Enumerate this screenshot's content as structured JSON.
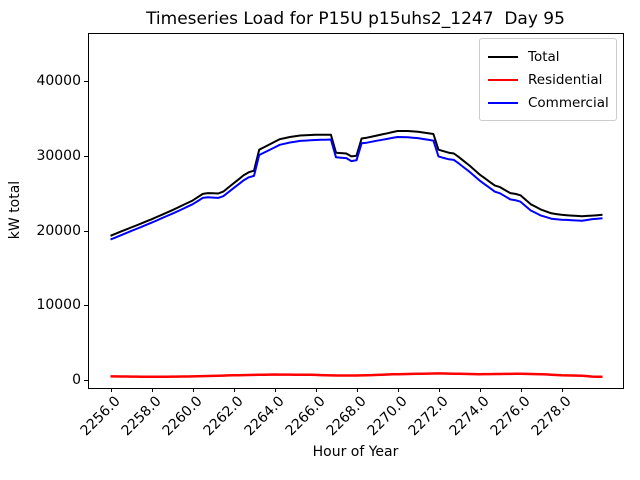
{
  "figure": {
    "title": "Timeseries Load for P15U p15uhs2_1247  Day 95"
  },
  "chart_data": {
    "type": "line",
    "title": "Timeseries Load for P15U p15uhs2_1247  Day 95",
    "xlabel": "Hour of Year",
    "ylabel": "kW total",
    "xlim": [
      2254.9,
      2281.0
    ],
    "ylim": [
      -1050,
      46400
    ],
    "grid": false,
    "legend_position": "upper right",
    "xticks": [
      2256,
      2258,
      2260,
      2262,
      2264,
      2266,
      2268,
      2270,
      2272,
      2274,
      2276,
      2278
    ],
    "xtick_labels": [
      "2256.0",
      "2258.0",
      "2260.0",
      "2262.0",
      "2264.0",
      "2266.0",
      "2268.0",
      "2270.0",
      "2272.0",
      "2274.0",
      "2276.0",
      "2278.0"
    ],
    "yticks": [
      0,
      10000,
      20000,
      30000,
      40000
    ],
    "ytick_labels": [
      "0",
      "10000",
      "20000",
      "30000",
      "40000"
    ],
    "x_interval_hours": 0.25,
    "x": [
      2256.0,
      2256.25,
      2256.5,
      2256.75,
      2257.0,
      2257.25,
      2257.5,
      2257.75,
      2258.0,
      2258.25,
      2258.5,
      2258.75,
      2259.0,
      2259.25,
      2259.5,
      2259.75,
      2260.0,
      2260.25,
      2260.5,
      2260.75,
      2261.0,
      2261.25,
      2261.5,
      2261.75,
      2262.0,
      2262.25,
      2262.5,
      2262.75,
      2263.0,
      2263.25,
      2263.5,
      2263.75,
      2264.0,
      2264.25,
      2264.5,
      2264.75,
      2265.0,
      2265.25,
      2265.5,
      2265.75,
      2266.0,
      2266.25,
      2266.5,
      2266.75,
      2267.0,
      2267.25,
      2267.5,
      2267.75,
      2268.0,
      2268.25,
      2268.5,
      2268.75,
      2269.0,
      2269.25,
      2269.5,
      2269.75,
      2270.0,
      2270.25,
      2270.5,
      2270.75,
      2271.0,
      2271.25,
      2271.5,
      2271.75,
      2272.0,
      2272.25,
      2272.5,
      2272.75,
      2273.0,
      2273.25,
      2273.5,
      2273.75,
      2274.0,
      2274.25,
      2274.5,
      2274.75,
      2275.0,
      2275.25,
      2275.5,
      2275.75,
      2276.0,
      2276.25,
      2276.5,
      2276.75,
      2277.0,
      2277.25,
      2277.5,
      2277.75,
      2278.0,
      2278.25,
      2278.5,
      2278.75,
      2279.0,
      2279.25,
      2279.5,
      2279.75,
      2280.0
    ],
    "series": [
      {
        "name": "Total",
        "color": "#000000",
        "linewidth": 2,
        "values": [
          19300,
          19575,
          19850,
          20125,
          20400,
          20675,
          20950,
          21225,
          21500,
          21800,
          22100,
          22400,
          22700,
          23025,
          23350,
          23675,
          24000,
          24450,
          24900,
          25000,
          24975,
          24950,
          25200,
          25750,
          26300,
          26850,
          27400,
          27800,
          28000,
          30800,
          31150,
          31500,
          31850,
          32200,
          32350,
          32500,
          32600,
          32700,
          32730,
          32770,
          32800,
          32800,
          32800,
          32800,
          30400,
          30350,
          30300,
          29900,
          30000,
          32300,
          32400,
          32550,
          32700,
          32850,
          33000,
          33150,
          33300,
          33300,
          33300,
          33250,
          33200,
          33100,
          33000,
          32900,
          30800,
          30600,
          30400,
          30300,
          29800,
          29250,
          28700,
          28100,
          27500,
          27000,
          26500,
          26000,
          25800,
          25400,
          25000,
          24900,
          24700,
          24100,
          23500,
          23150,
          22800,
          22550,
          22300,
          22200,
          22100,
          22050,
          22000,
          21950,
          21900,
          21950,
          22000,
          22050,
          22100
        ]
      },
      {
        "name": "Residential",
        "color": "#ff0000",
        "linewidth": 2.5,
        "values": [
          500,
          495,
          490,
          485,
          480,
          472,
          465,
          458,
          450,
          455,
          460,
          465,
          470,
          478,
          485,
          492,
          500,
          518,
          535,
          552,
          570,
          590,
          610,
          630,
          650,
          662,
          675,
          688,
          700,
          712,
          725,
          738,
          750,
          745,
          740,
          735,
          730,
          722,
          715,
          708,
          700,
          680,
          660,
          640,
          620,
          620,
          620,
          620,
          620,
          640,
          660,
          680,
          700,
          725,
          750,
          775,
          800,
          812,
          825,
          838,
          850,
          862,
          875,
          888,
          900,
          888,
          875,
          862,
          850,
          838,
          825,
          812,
          800,
          805,
          810,
          815,
          820,
          828,
          835,
          842,
          850,
          838,
          825,
          812,
          800,
          762,
          725,
          688,
          650,
          638,
          625,
          612,
          600,
          540,
          480,
          465,
          450
        ]
      },
      {
        "name": "Commercial",
        "color": "#0000ff",
        "linewidth": 2,
        "values": [
          18800,
          19080,
          19360,
          19640,
          19920,
          20203,
          20485,
          20767,
          21050,
          21345,
          21640,
          21935,
          22230,
          22547,
          22865,
          23183,
          23500,
          23932,
          24365,
          24448,
          24405,
          24360,
          24590,
          25120,
          25650,
          26188,
          26725,
          27112,
          27300,
          30088,
          30425,
          30762,
          31100,
          31455,
          31610,
          31765,
          31870,
          31978,
          32015,
          32062,
          32100,
          32120,
          32140,
          32160,
          29780,
          29730,
          29680,
          29280,
          29380,
          31660,
          31740,
          31870,
          32000,
          32125,
          32250,
          32375,
          32500,
          32488,
          32475,
          32412,
          32350,
          32238,
          32125,
          32012,
          29900,
          29712,
          29525,
          29438,
          28950,
          28412,
          27875,
          27288,
          26700,
          26195,
          25690,
          25185,
          24980,
          24572,
          24165,
          24058,
          23850,
          23262,
          22675,
          22338,
          22000,
          21788,
          21575,
          21512,
          21450,
          21412,
          21375,
          21338,
          21300,
          21410,
          21520,
          21585,
          21650
        ]
      }
    ]
  }
}
